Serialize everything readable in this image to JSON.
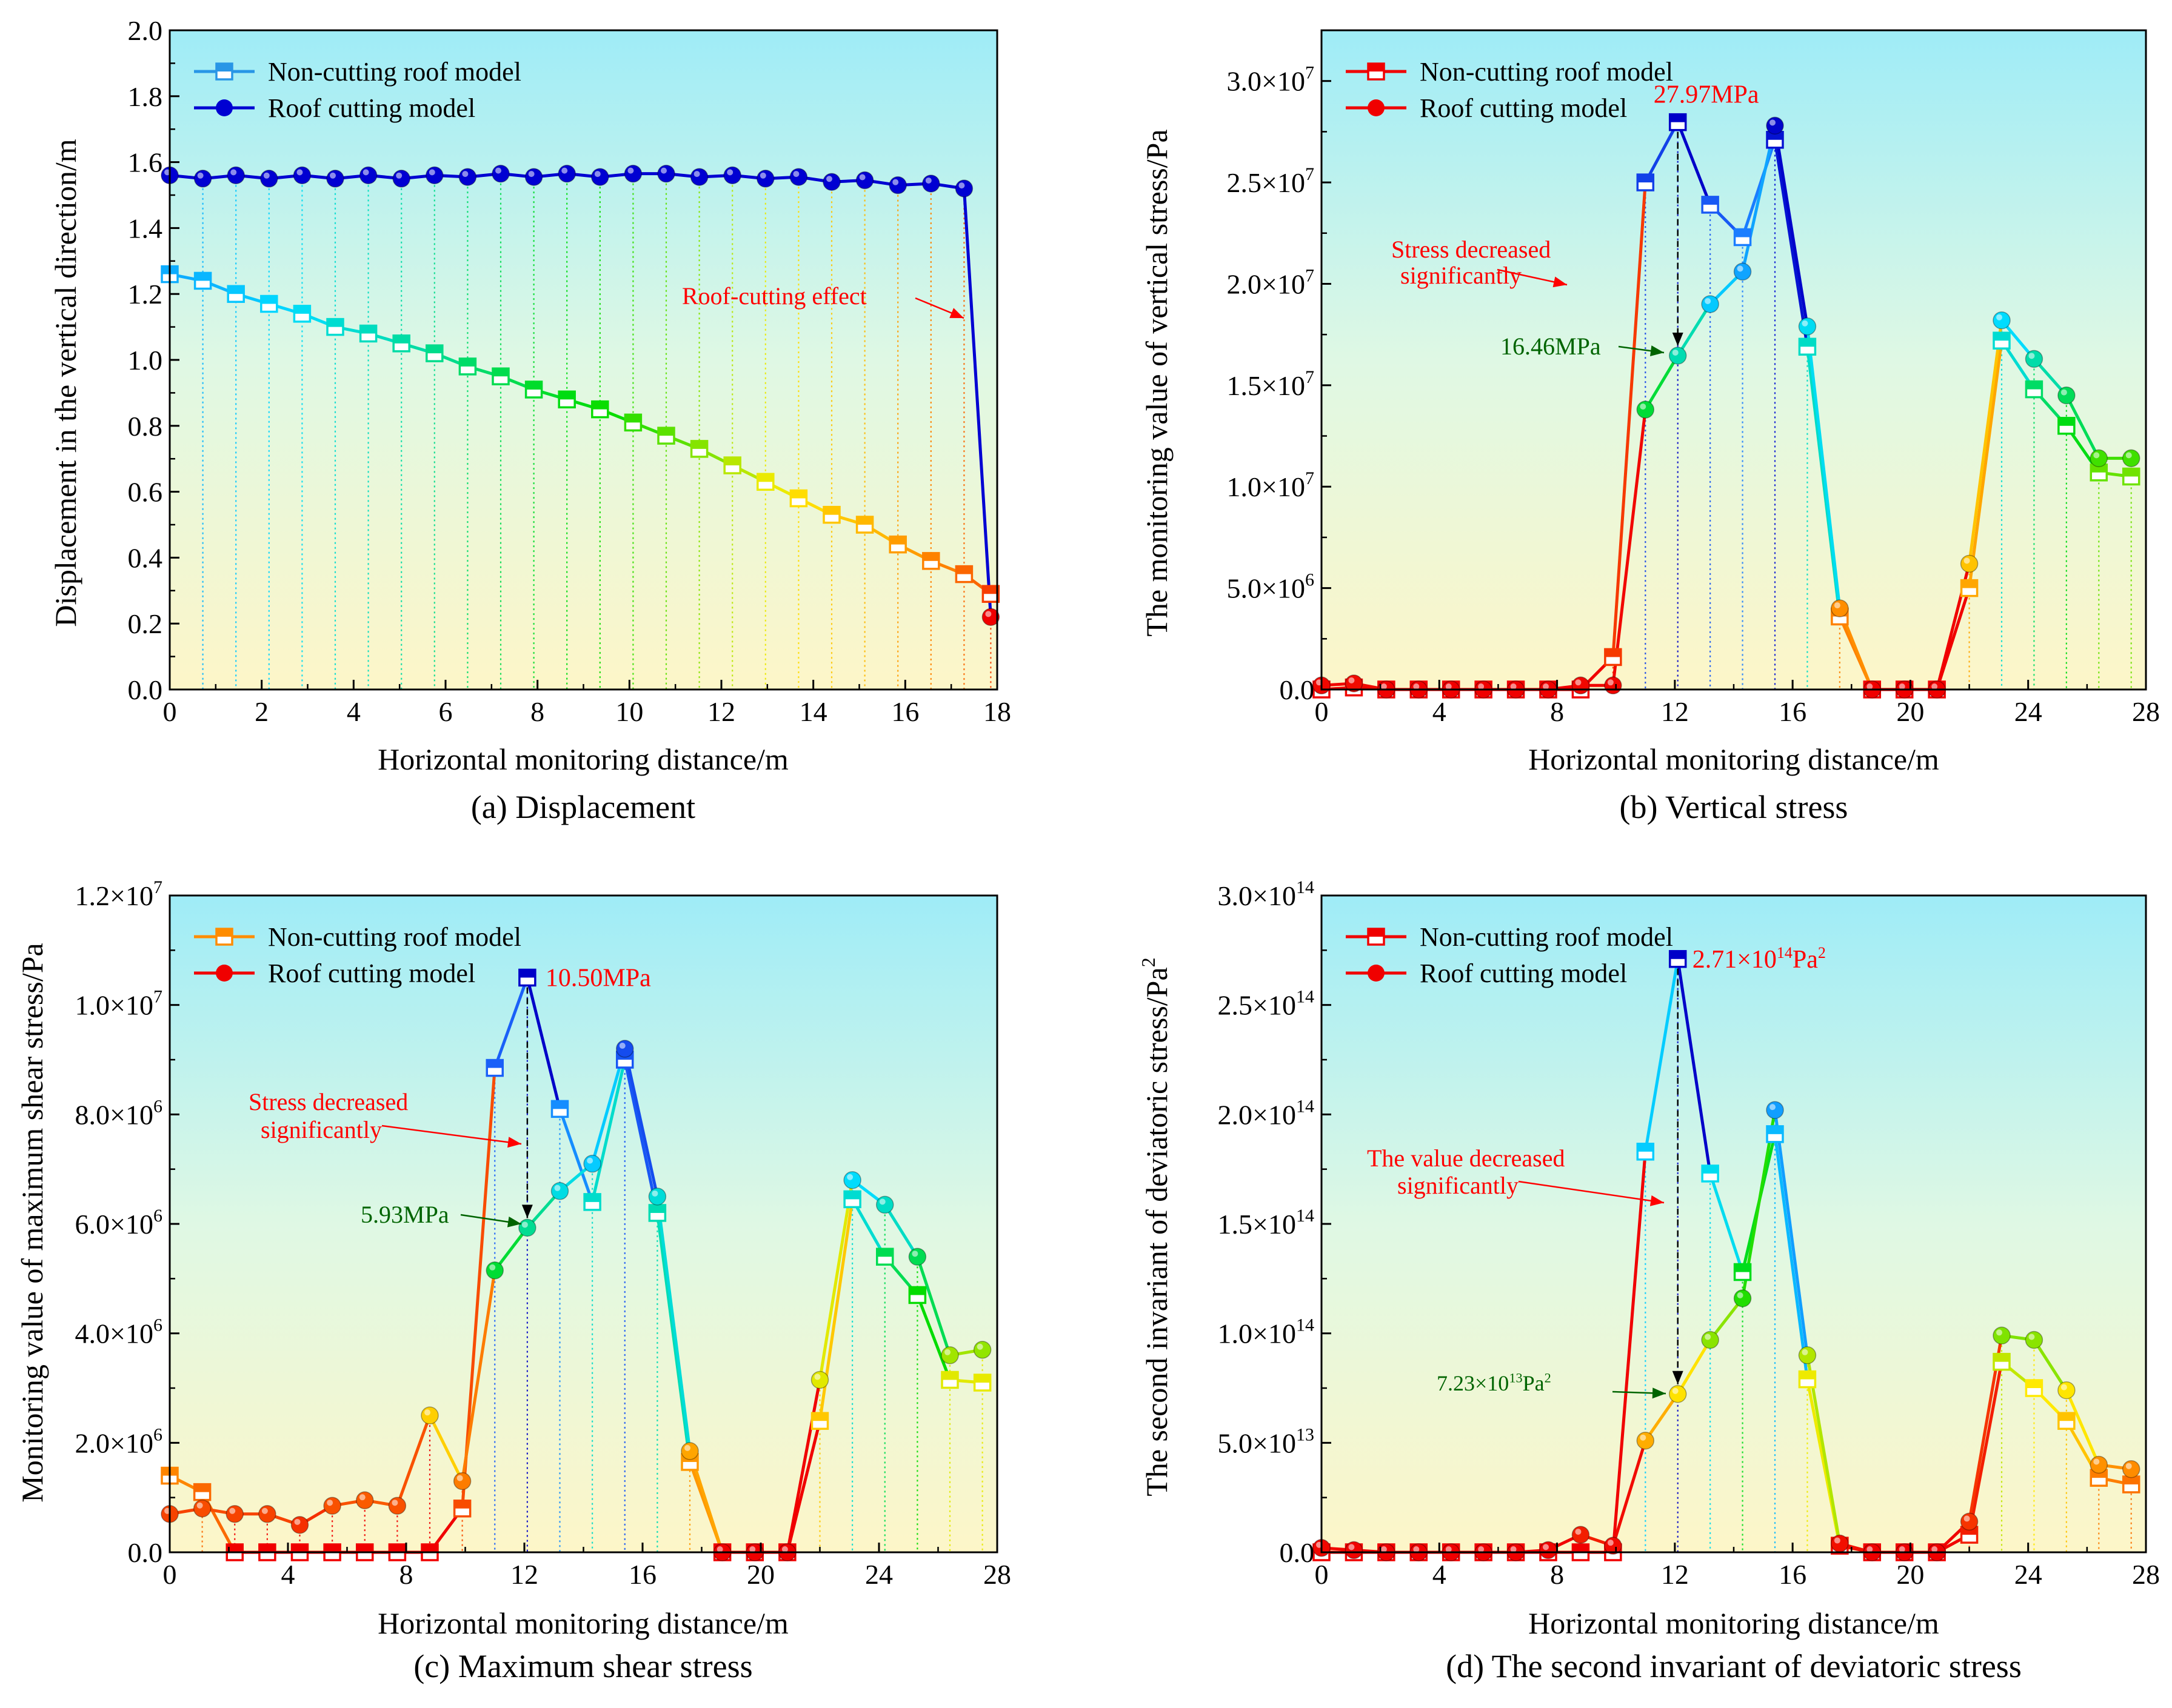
{
  "chart_data": [
    {
      "type": "line",
      "panel": "(a) Displacement",
      "caption": "(a) Displacement",
      "xlabel": "Horizontal monitoring distance/m",
      "ylabel": "Displacement in the vertical direction/m",
      "xlim": [
        0,
        18
      ],
      "ylim": [
        0,
        2.0
      ],
      "xticks": [
        "0",
        "2",
        "4",
        "6",
        "8",
        "10",
        "12",
        "14",
        "16",
        "18"
      ],
      "yticks": [
        "0.0",
        "0.2",
        "0.4",
        "0.6",
        "0.8",
        "1.0",
        "1.2",
        "1.4",
        "1.6",
        "1.8",
        "2.0"
      ],
      "legend_position": "top-left",
      "grid": "vertical dotted drop lines at each monitoring point",
      "series": [
        {
          "name": "Non-cutting roof model",
          "marker": "half-filled square",
          "x": [
            0,
            0.72,
            1.44,
            2.16,
            2.88,
            3.6,
            4.32,
            5.04,
            5.76,
            6.48,
            7.2,
            7.92,
            8.64,
            9.36,
            10.08,
            10.8,
            11.52,
            12.24,
            12.96,
            13.68,
            14.4,
            15.12,
            15.84,
            16.56,
            17.28,
            17.86
          ],
          "values": [
            1.26,
            1.24,
            1.2,
            1.17,
            1.14,
            1.1,
            1.08,
            1.05,
            1.02,
            0.98,
            0.95,
            0.91,
            0.88,
            0.85,
            0.81,
            0.77,
            0.73,
            0.68,
            0.63,
            0.58,
            0.53,
            0.5,
            0.44,
            0.39,
            0.35,
            0.29
          ]
        },
        {
          "name": "Roof cutting model",
          "marker": "circle",
          "x": [
            0,
            0.72,
            1.44,
            2.16,
            2.88,
            3.6,
            4.32,
            5.04,
            5.76,
            6.48,
            7.2,
            7.92,
            8.64,
            9.36,
            10.08,
            10.8,
            11.52,
            12.24,
            12.96,
            13.68,
            14.4,
            15.12,
            15.84,
            16.56,
            17.28,
            17.86
          ],
          "values": [
            1.56,
            1.55,
            1.56,
            1.55,
            1.56,
            1.55,
            1.56,
            1.55,
            1.56,
            1.555,
            1.565,
            1.555,
            1.565,
            1.555,
            1.565,
            1.565,
            1.555,
            1.56,
            1.55,
            1.555,
            1.54,
            1.545,
            1.53,
            1.535,
            1.52,
            0.22
          ]
        }
      ],
      "annotations": [
        {
          "text": "Roof-cutting effect",
          "color": "#ff0000"
        }
      ]
    },
    {
      "type": "line",
      "panel": "(b) Vertical stress",
      "caption": "(b) Vertical stress",
      "xlabel": "Horizontal monitoring distance/m",
      "ylabel": "The monitoring value of vertical stress/Pa",
      "xlim": [
        0,
        28
      ],
      "ylim": [
        0,
        32500000
      ],
      "xticks": [
        "0",
        "4",
        "8",
        "12",
        "16",
        "20",
        "24",
        "28"
      ],
      "yticks": [
        {
          "m": "0.0",
          "e": ""
        },
        {
          "m": "5.0×10",
          "e": "6"
        },
        {
          "m": "1.0×10",
          "e": "7"
        },
        {
          "m": "1.5×10",
          "e": "7"
        },
        {
          "m": "2.0×10",
          "e": "7"
        },
        {
          "m": "2.5×10",
          "e": "7"
        },
        {
          "m": "3.0×10",
          "e": "7"
        }
      ],
      "legend_position": "top-left",
      "series": [
        {
          "name": "Non-cutting roof model",
          "marker": "half-filled square",
          "x": [
            0,
            1.1,
            2.2,
            3.3,
            4.4,
            5.5,
            6.6,
            7.7,
            8.8,
            9.9,
            11.0,
            12.1,
            13.2,
            14.3,
            15.4,
            16.5,
            17.6,
            18.7,
            19.8,
            20.9,
            22.0,
            23.1,
            24.2,
            25.3,
            26.4,
            27.5
          ],
          "values": [
            0,
            100000,
            0,
            0,
            0,
            0,
            0,
            0,
            0,
            1600000,
            25000000,
            27970000,
            23900000,
            22300000,
            27100000,
            16900000,
            3600000,
            0,
            0,
            0,
            5000000,
            17200000,
            14800000,
            13000000,
            10700000,
            10500000
          ]
        },
        {
          "name": "Roof cutting model",
          "marker": "circle",
          "x": [
            0,
            1.1,
            2.2,
            3.3,
            4.4,
            5.5,
            6.6,
            7.7,
            8.8,
            9.9,
            11.0,
            12.1,
            13.2,
            14.3,
            15.4,
            16.5,
            17.6,
            18.7,
            19.8,
            20.9,
            22.0,
            23.1,
            24.2,
            25.3,
            26.4,
            27.5
          ],
          "values": [
            200000,
            300000,
            0,
            0,
            0,
            0,
            0,
            0,
            200000,
            200000,
            13800000,
            16460000,
            19000000,
            20600000,
            27800000,
            17900000,
            4000000,
            0,
            0,
            0,
            6200000,
            18200000,
            16300000,
            14500000,
            11400000,
            11400000
          ]
        }
      ],
      "annotations": [
        {
          "text": "27.97MPa",
          "color": "#ff0000"
        },
        {
          "text": "Stress decreased",
          "color": "#ff0000"
        },
        {
          "text": "significantly",
          "color": "#ff0000"
        },
        {
          "text": "16.46MPa",
          "color": "#006400"
        }
      ]
    },
    {
      "type": "line",
      "panel": "(c) Maximum shear stress",
      "caption": "(c) Maximum shear stress",
      "xlabel": "Horizontal monitoring distance/m",
      "ylabel": "Monitoring value of maximum shear stress/Pa",
      "xlim": [
        0,
        28
      ],
      "ylim": [
        0,
        12000000
      ],
      "xticks": [
        "0",
        "4",
        "8",
        "12",
        "16",
        "20",
        "24",
        "28"
      ],
      "yticks": [
        {
          "m": "0.0",
          "e": ""
        },
        {
          "m": "2.0×10",
          "e": "6"
        },
        {
          "m": "4.0×10",
          "e": "6"
        },
        {
          "m": "6.0×10",
          "e": "6"
        },
        {
          "m": "8.0×10",
          "e": "6"
        },
        {
          "m": "1.0×10",
          "e": "7"
        },
        {
          "m": "1.2×10",
          "e": "7"
        }
      ],
      "legend_position": "top-left",
      "series": [
        {
          "name": "Non-cutting roof model",
          "marker": "half-filled square",
          "x": [
            0,
            1.1,
            2.2,
            3.3,
            4.4,
            5.5,
            6.6,
            7.7,
            8.8,
            9.9,
            11.0,
            12.1,
            13.2,
            14.3,
            15.4,
            16.5,
            17.6,
            18.7,
            19.8,
            20.9,
            22.0,
            23.1,
            24.2,
            25.3,
            26.4,
            27.5
          ],
          "values": [
            1400000,
            1100000,
            0,
            0,
            0,
            0,
            0,
            0,
            0,
            800000,
            8850000,
            10500000,
            8100000,
            6400000,
            9000000,
            6200000,
            1650000,
            0,
            0,
            0,
            2400000,
            6450000,
            5400000,
            4700000,
            3150000,
            3100000
          ]
        },
        {
          "name": "Roof cutting model",
          "marker": "circle",
          "x": [
            0,
            1.1,
            2.2,
            3.3,
            4.4,
            5.5,
            6.6,
            7.7,
            8.8,
            9.9,
            11.0,
            12.1,
            13.2,
            14.3,
            15.4,
            16.5,
            17.6,
            18.7,
            19.8,
            20.9,
            22.0,
            23.1,
            24.2,
            25.3,
            26.4,
            27.5
          ],
          "values": [
            700000,
            800000,
            700000,
            700000,
            500000,
            850000,
            950000,
            850000,
            2500000,
            1300000,
            5150000,
            5930000,
            6600000,
            7100000,
            9200000,
            6500000,
            1850000,
            0,
            0,
            0,
            3150000,
            6800000,
            6350000,
            5400000,
            3600000,
            3700000
          ]
        }
      ],
      "annotations": [
        {
          "text": "10.50MPa",
          "color": "#ff0000"
        },
        {
          "text": "Stress decreased",
          "color": "#ff0000"
        },
        {
          "text": "significantly",
          "color": "#ff0000"
        },
        {
          "text": "5.93MPa",
          "color": "#006400"
        }
      ]
    },
    {
      "type": "line",
      "panel": "(d) The second invariant of deviatoric stress",
      "caption": "(d) The second invariant of deviatoric stress",
      "xlabel": "Horizontal monitoring distance/m",
      "ylabel": "The second invariant of deviatoric stress/Pa",
      "ylabel_sup": "2",
      "xlim": [
        0,
        28
      ],
      "ylim": [
        0,
        300000000000000
      ],
      "xticks": [
        "0",
        "4",
        "8",
        "12",
        "16",
        "20",
        "24",
        "28"
      ],
      "yticks": [
        {
          "m": "0.0",
          "e": ""
        },
        {
          "m": "5.0×10",
          "e": "13"
        },
        {
          "m": "1.0×10",
          "e": "14"
        },
        {
          "m": "1.5×10",
          "e": "14"
        },
        {
          "m": "2.0×10",
          "e": "14"
        },
        {
          "m": "2.5×10",
          "e": "14"
        },
        {
          "m": "3.0×10",
          "e": "14"
        }
      ],
      "legend_position": "top-left",
      "series": [
        {
          "name": "Non-cutting roof model",
          "marker": "half-filled square",
          "x": [
            0,
            1.1,
            2.2,
            3.3,
            4.4,
            5.5,
            6.6,
            7.7,
            8.8,
            9.9,
            11.0,
            12.1,
            13.2,
            14.3,
            15.4,
            16.5,
            17.6,
            18.7,
            19.8,
            20.9,
            22.0,
            23.1,
            24.2,
            25.3,
            26.4,
            27.5
          ],
          "values": [
            0,
            0,
            0,
            0,
            0,
            0,
            0,
            0,
            0,
            0,
            183000000000000,
            271000000000000,
            173000000000000,
            128000000000000,
            191000000000000,
            79000000000000,
            3000000000000,
            0,
            0,
            0,
            8000000000000,
            87000000000000,
            75000000000000,
            60000000000000,
            34000000000000,
            31000000000000
          ]
        },
        {
          "name": "Roof cutting model",
          "marker": "circle",
          "x": [
            0,
            1.1,
            2.2,
            3.3,
            4.4,
            5.5,
            6.6,
            7.7,
            8.8,
            9.9,
            11.0,
            12.1,
            13.2,
            14.3,
            15.4,
            16.5,
            17.6,
            18.7,
            19.8,
            20.9,
            22.0,
            23.1,
            24.2,
            25.3,
            26.4,
            27.5
          ],
          "values": [
            2000000000000,
            1000000000000,
            0,
            0,
            0,
            0,
            0,
            1000000000000,
            8000000000000,
            3000000000000,
            51000000000000,
            72300000000000,
            97000000000000,
            116000000000000,
            202000000000000,
            90000000000000,
            4000000000000,
            0,
            0,
            0,
            14000000000000,
            99000000000000,
            97000000000000,
            74000000000000,
            40000000000000,
            38000000000000
          ]
        }
      ],
      "annotations": [
        {
          "text": "2.71×10",
          "sup": "14",
          "tail": "Pa",
          "tail_sup": "2",
          "color": "#ff0000"
        },
        {
          "text": "The value decreased",
          "color": "#ff0000"
        },
        {
          "text": "significantly",
          "color": "#ff0000"
        },
        {
          "text": "7.23×10",
          "sup": "13",
          "tail": "Pa",
          "tail_sup": "2",
          "color": "#006400"
        }
      ]
    }
  ]
}
